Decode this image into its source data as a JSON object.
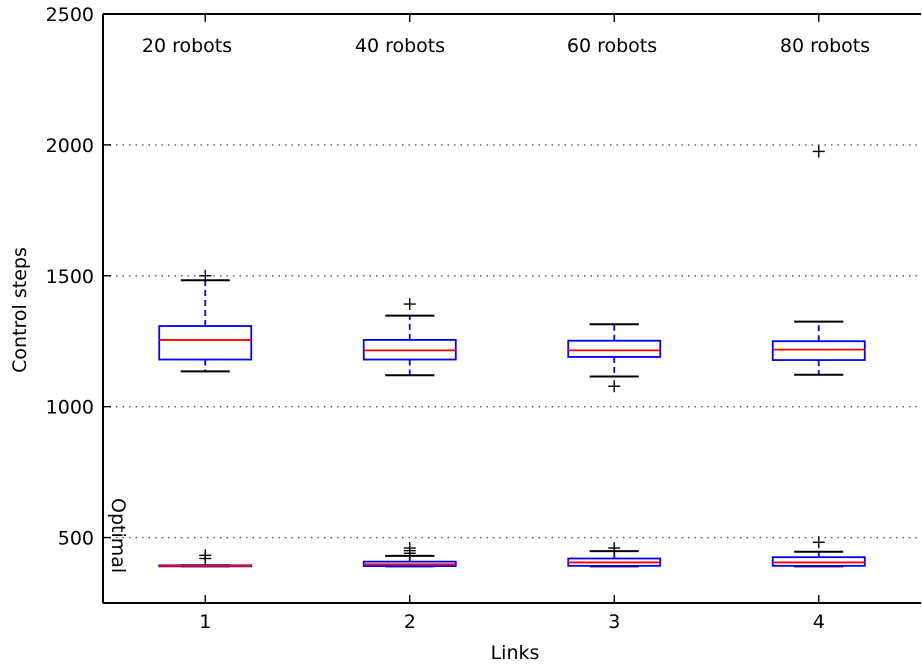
{
  "chart_data": {
    "type": "box",
    "xlabel": "Links",
    "ylabel": "Control steps",
    "categories": [
      "1",
      "2",
      "3",
      "4"
    ],
    "ylim": [
      250,
      2500
    ],
    "yticks": [
      500,
      1000,
      1500,
      2000,
      2500
    ],
    "ytick_labels": [
      "500",
      "1000",
      "1500",
      "2000",
      "2500"
    ],
    "grid": "horizontal dotted",
    "annotations": {
      "group_labels": [
        "20 robots",
        "40 robots",
        "60 robots",
        "80 robots"
      ],
      "baseline_label": "Optimal"
    },
    "series": [
      {
        "boxes": [
          {
            "category": "1",
            "whisker_low": 1135,
            "q1": 1180,
            "median": 1255,
            "q3": 1308,
            "whisker_high": 1483,
            "outliers": [
              1500
            ]
          },
          {
            "category": "2",
            "whisker_low": 1120,
            "q1": 1180,
            "median": 1215,
            "q3": 1255,
            "whisker_high": 1348,
            "outliers": [
              1392
            ]
          },
          {
            "category": "3",
            "whisker_low": 1115,
            "q1": 1190,
            "median": 1215,
            "q3": 1252,
            "whisker_high": 1315,
            "outliers": [
              1078
            ]
          },
          {
            "category": "4",
            "whisker_low": 1122,
            "q1": 1178,
            "median": 1218,
            "q3": 1250,
            "whisker_high": 1325,
            "outliers": [
              1975
            ]
          }
        ]
      },
      {
        "name": "Optimal",
        "boxes": [
          {
            "category": "1",
            "whisker_low": 390,
            "q1": 390,
            "median": 392,
            "q3": 394,
            "whisker_high": 394,
            "outliers": [
              420,
              432
            ]
          },
          {
            "category": "2",
            "whisker_low": 390,
            "q1": 391,
            "median": 398,
            "q3": 408,
            "whisker_high": 430,
            "outliers": [
              440,
              450,
              460
            ]
          },
          {
            "category": "3",
            "whisker_low": 390,
            "q1": 392,
            "median": 405,
            "q3": 420,
            "whisker_high": 448,
            "outliers": [
              460
            ]
          },
          {
            "category": "4",
            "whisker_low": 390,
            "q1": 392,
            "median": 405,
            "q3": 425,
            "whisker_high": 446,
            "outliers": [
              482
            ]
          }
        ]
      }
    ],
    "colors": {
      "box": "#0000ff",
      "median": "#ff0000",
      "whisker_cap": "#000000",
      "outlier": "#000000",
      "grid": "#555555"
    }
  }
}
